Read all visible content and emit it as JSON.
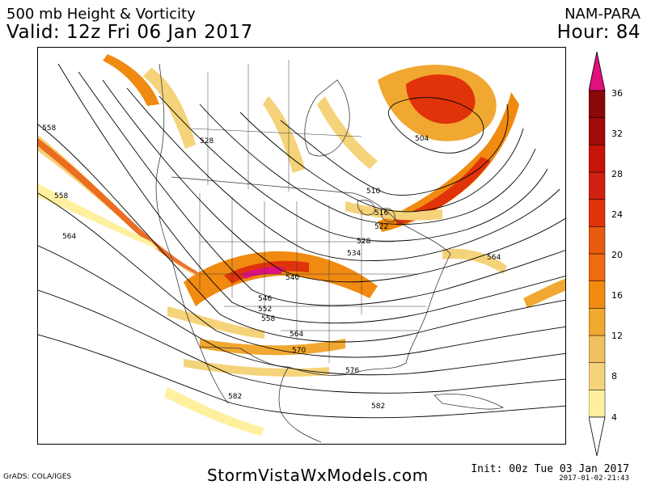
{
  "header": {
    "title_left": "500 mb Height & Vorticity",
    "valid_line": "Valid: 12z Fri 06 Jan 2017",
    "model": "NAM-PARA",
    "hour_line": "Hour: 84"
  },
  "map": {
    "contour_labels": [
      {
        "id": "558-west",
        "text": "558"
      },
      {
        "id": "528-nw",
        "text": "528"
      },
      {
        "id": "558-pacific",
        "text": "558"
      },
      {
        "id": "564-pacific",
        "text": "564"
      },
      {
        "id": "504-hudson",
        "text": "504"
      },
      {
        "id": "510",
        "text": "510"
      },
      {
        "id": "516",
        "text": "516"
      },
      {
        "id": "522",
        "text": "522"
      },
      {
        "id": "528-east",
        "text": "528"
      },
      {
        "id": "534",
        "text": "534"
      },
      {
        "id": "540",
        "text": "540"
      },
      {
        "id": "546",
        "text": "546"
      },
      {
        "id": "552",
        "text": "552"
      },
      {
        "id": "558-south",
        "text": "558"
      },
      {
        "id": "564-south",
        "text": "564"
      },
      {
        "id": "570",
        "text": "570"
      },
      {
        "id": "576",
        "text": "576"
      },
      {
        "id": "582-west",
        "text": "582"
      },
      {
        "id": "582-east",
        "text": "582"
      },
      {
        "id": "564-atlantic",
        "text": "564"
      }
    ],
    "colors": {
      "vort_4": "#fff0a0",
      "vort_8": "#f5d37a",
      "vort_12": "#f0a830",
      "vort_16": "#f08a10",
      "vort_20": "#e85a10",
      "vort_24": "#e0330a",
      "vort_28": "#c81408",
      "vort_32": "#a00a0a",
      "vort_36": "#e0107f",
      "contour": "#000000",
      "border": "#3a3a3a"
    }
  },
  "colorbar": {
    "tick_labels": [
      "4",
      "8",
      "12",
      "16",
      "20",
      "24",
      "28",
      "32",
      "36"
    ],
    "band_colors": [
      "#fff0a0",
      "#f5d37a",
      "#f0c060",
      "#f0a830",
      "#f08a10",
      "#f06a10",
      "#e85a10",
      "#e0330a",
      "#d02010",
      "#c81408",
      "#a00a0a",
      "#8a0808"
    ],
    "top_arrow_color": "#e0107f"
  },
  "footer": {
    "grads": "GrADS: COLA/IGES",
    "site": "StormVistaWxModels.com",
    "init": "Init: 00z Tue 03 Jan 2017",
    "stamp": "2017-01-02-21:43"
  }
}
